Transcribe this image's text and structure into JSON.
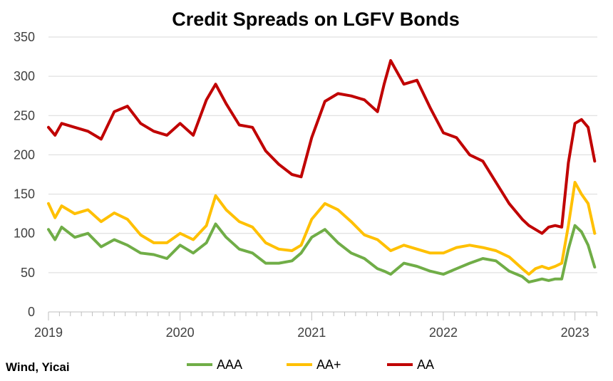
{
  "chart_data": {
    "type": "line",
    "title": "Credit Spreads on LGFV Bonds",
    "source": "Wind, Yicai",
    "xlabel": "",
    "ylabel": "",
    "ylim": [
      0,
      350
    ],
    "yticks": [
      0,
      50,
      100,
      150,
      200,
      250,
      300,
      350
    ],
    "xticks": [
      "2019",
      "2020",
      "2021",
      "2022",
      "2023"
    ],
    "grid": true,
    "legend": "bottom",
    "x": [
      2019.0,
      2019.05,
      2019.1,
      2019.2,
      2019.3,
      2019.4,
      2019.5,
      2019.6,
      2019.7,
      2019.8,
      2019.9,
      2020.0,
      2020.1,
      2020.2,
      2020.27,
      2020.35,
      2020.45,
      2020.55,
      2020.65,
      2020.75,
      2020.85,
      2020.92,
      2021.0,
      2021.1,
      2021.2,
      2021.3,
      2021.4,
      2021.5,
      2021.55,
      2021.6,
      2021.7,
      2021.8,
      2021.9,
      2022.0,
      2022.1,
      2022.2,
      2022.3,
      2022.4,
      2022.5,
      2022.6,
      2022.65,
      2022.7,
      2022.75,
      2022.8,
      2022.85,
      2022.9,
      2022.95,
      2023.0,
      2023.05,
      2023.1,
      2023.15
    ],
    "series": [
      {
        "name": "AAA",
        "color": "#70ad47",
        "values": [
          105,
          92,
          108,
          95,
          100,
          83,
          92,
          85,
          75,
          73,
          68,
          85,
          75,
          88,
          112,
          95,
          80,
          75,
          62,
          62,
          65,
          75,
          95,
          105,
          88,
          75,
          68,
          55,
          52,
          48,
          62,
          58,
          52,
          48,
          55,
          62,
          68,
          65,
          52,
          45,
          38,
          40,
          42,
          40,
          42,
          42,
          80,
          110,
          102,
          85,
          57
        ]
      },
      {
        "name": "AA+",
        "color": "#ffc000",
        "values": [
          138,
          120,
          135,
          125,
          130,
          115,
          126,
          118,
          98,
          88,
          88,
          100,
          92,
          110,
          148,
          130,
          115,
          108,
          88,
          80,
          78,
          85,
          118,
          138,
          130,
          115,
          98,
          92,
          85,
          78,
          85,
          80,
          75,
          75,
          82,
          85,
          82,
          78,
          70,
          55,
          48,
          55,
          58,
          55,
          58,
          62,
          110,
          165,
          150,
          138,
          100
        ]
      },
      {
        "name": "AA",
        "color": "#c00000",
        "values": [
          235,
          225,
          240,
          235,
          230,
          220,
          255,
          262,
          240,
          230,
          225,
          240,
          225,
          270,
          290,
          265,
          238,
          235,
          205,
          188,
          175,
          172,
          222,
          268,
          278,
          275,
          270,
          255,
          290,
          320,
          290,
          295,
          260,
          228,
          222,
          200,
          192,
          165,
          138,
          118,
          110,
          105,
          100,
          108,
          110,
          108,
          190,
          240,
          245,
          235,
          192
        ]
      }
    ]
  }
}
